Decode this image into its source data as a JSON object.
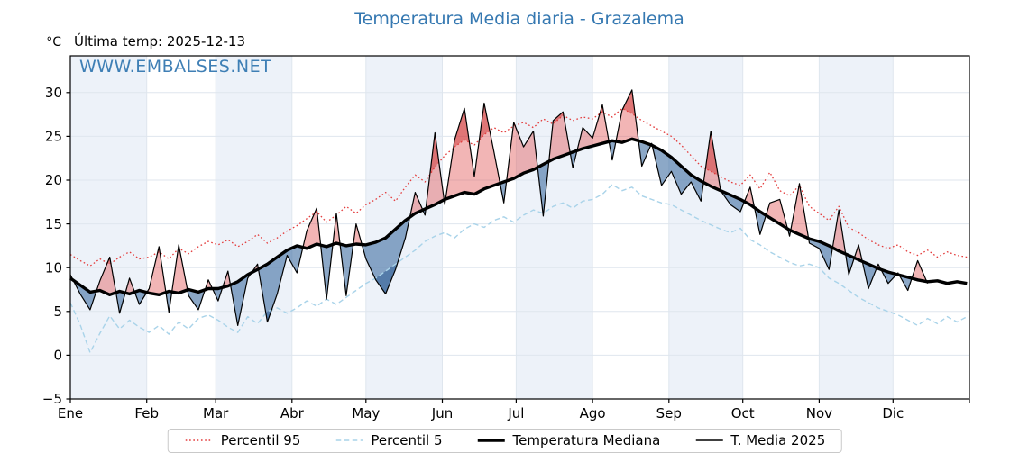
{
  "header": {
    "title": "Temperatura Media diaria - Grazalema",
    "unit_label": "°C",
    "last_temp_label": "Última temp: 2025-12-13",
    "watermark": "WWW.EMBALSES.NET"
  },
  "colors": {
    "title": "#3578b1",
    "watermark": "#3578b1",
    "band": "#edf2f9",
    "grid": "#dfe6ee",
    "axis": "#000000",
    "tick_label": "#000000",
    "fill_above": "rgba(226,92,92,0.45)",
    "fill_below": "rgba(70,115,165,0.62)",
    "fill_above_extreme": "rgba(200,30,30,0.42)",
    "fill_below_extreme": "rgba(25,75,135,0.45)"
  },
  "legend": {
    "items": [
      {
        "label": "Percentil 95",
        "series_id": "p95"
      },
      {
        "label": "Percentil 5",
        "series_id": "p5"
      },
      {
        "label": "Temperatura Mediana",
        "series_id": "mediana"
      },
      {
        "label": "T. Media 2025",
        "series_id": "t2025"
      }
    ]
  },
  "chart_data": {
    "type": "line",
    "title": "Temperatura Media diaria - Grazalema",
    "ylabel": "°C",
    "grid": true,
    "legend_position": "bottom",
    "x_axis": {
      "tick_labels": [
        "Ene",
        "Feb",
        "Mar",
        "Abr",
        "May",
        "Jun",
        "Jul",
        "Ago",
        "Sep",
        "Oct",
        "Nov",
        "Dic"
      ],
      "month_start_days": [
        0,
        31,
        59,
        90,
        120,
        151,
        181,
        212,
        243,
        273,
        304,
        334,
        365
      ],
      "lim_days": [
        0,
        365
      ]
    },
    "y_axis": {
      "ticks": [
        -5,
        0,
        5,
        10,
        15,
        20,
        25,
        30
      ],
      "lim": [
        -5,
        34.2
      ]
    },
    "series": [
      {
        "id": "p95",
        "name": "Percentil 95",
        "style": "dotted",
        "color": "#e33b3b",
        "width": 1.3,
        "step_days": 4,
        "values": [
          11.5,
          10.8,
          10.2,
          11.0,
          10.4,
          11.2,
          11.8,
          11.0,
          11.2,
          11.8,
          11.0,
          12.2,
          11.6,
          12.4,
          13.0,
          12.6,
          13.2,
          12.4,
          13.0,
          13.8,
          12.8,
          13.4,
          14.2,
          14.8,
          15.6,
          16.4,
          15.2,
          16.0,
          17.0,
          16.2,
          17.2,
          17.8,
          18.6,
          17.6,
          19.2,
          20.6,
          19.8,
          21.5,
          22.8,
          23.8,
          24.6,
          24.0,
          25.2,
          26.0,
          25.4,
          26.2,
          26.6,
          26.0,
          27.0,
          26.4,
          27.4,
          26.8,
          27.2,
          27.0,
          27.8,
          27.2,
          28.2,
          27.6,
          26.8,
          26.2,
          25.6,
          25.0,
          24.0,
          22.8,
          21.6,
          21.0,
          20.4,
          19.8,
          19.4,
          20.6,
          19.0,
          20.9,
          18.8,
          18.2,
          19.4,
          17.0,
          16.2,
          15.4,
          17.0,
          14.6,
          14.0,
          13.2,
          12.6,
          12.2,
          12.6,
          11.8,
          11.4,
          12.0,
          11.2,
          11.8,
          11.4,
          11.2
        ]
      },
      {
        "id": "p5",
        "name": "Percentil 5",
        "style": "dashed",
        "color": "#a9d3e9",
        "width": 1.4,
        "step_days": 4,
        "values": [
          6.0,
          3.5,
          0.3,
          2.5,
          4.5,
          3.0,
          4.0,
          3.2,
          2.6,
          3.4,
          2.4,
          3.8,
          3.0,
          4.2,
          4.6,
          4.0,
          3.2,
          2.6,
          4.4,
          3.6,
          5.0,
          5.4,
          4.8,
          5.4,
          6.2,
          5.6,
          6.4,
          5.8,
          6.6,
          7.4,
          8.2,
          8.8,
          9.6,
          10.4,
          11.2,
          12.0,
          13.0,
          13.6,
          14.0,
          13.4,
          14.4,
          15.0,
          14.6,
          15.4,
          15.8,
          15.2,
          16.0,
          16.6,
          16.2,
          17.0,
          17.4,
          16.8,
          17.6,
          17.8,
          18.4,
          19.5,
          18.8,
          19.2,
          18.2,
          17.8,
          17.4,
          17.2,
          16.6,
          16.0,
          15.4,
          14.9,
          14.4,
          14.0,
          14.5,
          13.2,
          12.6,
          11.8,
          11.2,
          10.6,
          10.2,
          10.4,
          10.0,
          8.8,
          8.2,
          7.4,
          6.6,
          6.0,
          5.4,
          5.0,
          4.6,
          4.0,
          3.4,
          4.2,
          3.6,
          4.4,
          3.8,
          4.4
        ]
      },
      {
        "id": "t2025",
        "name": "T. Media 2025",
        "style": "solid",
        "color": "#000000",
        "width": 1.2,
        "step_days": 4,
        "values": [
          9.2,
          7.0,
          5.2,
          8.5,
          11.2,
          4.8,
          8.8,
          5.8,
          7.6,
          12.4,
          4.9,
          12.6,
          6.8,
          5.2,
          8.6,
          6.2,
          9.6,
          3.4,
          8.8,
          10.4,
          3.8,
          7.0,
          11.4,
          9.4,
          14.2,
          16.8,
          6.4,
          16.2,
          6.8,
          15.0,
          11.0,
          8.6,
          7.0,
          9.8,
          13.4,
          18.6,
          16.0,
          25.4,
          17.2,
          24.6,
          28.2,
          20.4,
          28.8,
          23.2,
          17.4,
          26.6,
          23.8,
          25.6,
          15.9,
          26.8,
          27.8,
          21.4,
          26.0,
          24.8,
          28.6,
          22.3,
          28.0,
          30.3,
          21.6,
          24.2,
          19.4,
          21.0,
          18.4,
          19.8,
          17.6,
          25.6,
          18.8,
          17.2,
          16.4,
          19.2,
          13.8,
          17.4,
          17.8,
          13.6,
          19.6,
          12.8,
          12.2,
          9.8,
          16.6,
          9.2,
          12.6,
          7.6,
          10.4,
          8.2,
          9.4,
          7.4,
          10.8,
          8.2
        ]
      },
      {
        "id": "mediana",
        "name": "Temperatura Mediana",
        "style": "solid",
        "color": "#000000",
        "width": 3.4,
        "step_days": 4,
        "values": [
          8.8,
          8.0,
          7.2,
          7.4,
          6.9,
          7.3,
          7.0,
          7.4,
          7.1,
          6.9,
          7.3,
          7.1,
          7.5,
          7.2,
          7.6,
          7.6,
          7.9,
          8.4,
          9.2,
          9.8,
          10.4,
          11.2,
          12.0,
          12.5,
          12.2,
          12.7,
          12.4,
          12.8,
          12.5,
          12.7,
          12.6,
          12.9,
          13.4,
          14.4,
          15.4,
          16.2,
          16.7,
          17.2,
          17.8,
          18.2,
          18.6,
          18.4,
          19.0,
          19.4,
          19.8,
          20.2,
          20.8,
          21.2,
          21.8,
          22.4,
          22.8,
          23.2,
          23.6,
          23.9,
          24.2,
          24.5,
          24.3,
          24.7,
          24.4,
          24.0,
          23.4,
          22.6,
          21.6,
          20.6,
          19.9,
          19.3,
          18.8,
          18.3,
          17.8,
          17.2,
          16.4,
          15.7,
          15.0,
          14.3,
          13.8,
          13.3,
          13.0,
          12.5,
          11.9,
          11.4,
          10.9,
          10.4,
          9.9,
          9.5,
          9.2,
          8.9,
          8.6,
          8.4,
          8.5,
          8.2,
          8.4,
          8.2
        ]
      }
    ],
    "fills": [
      {
        "between": [
          "t2025",
          "mediana"
        ],
        "where": "above",
        "color_key": "fill_above"
      },
      {
        "between": [
          "t2025",
          "mediana"
        ],
        "where": "below",
        "color_key": "fill_below"
      },
      {
        "between": [
          "t2025",
          "p95"
        ],
        "where": "above",
        "color_key": "fill_above_extreme"
      },
      {
        "between": [
          "t2025",
          "p5"
        ],
        "where": "below",
        "color_key": "fill_below_extreme"
      }
    ]
  }
}
